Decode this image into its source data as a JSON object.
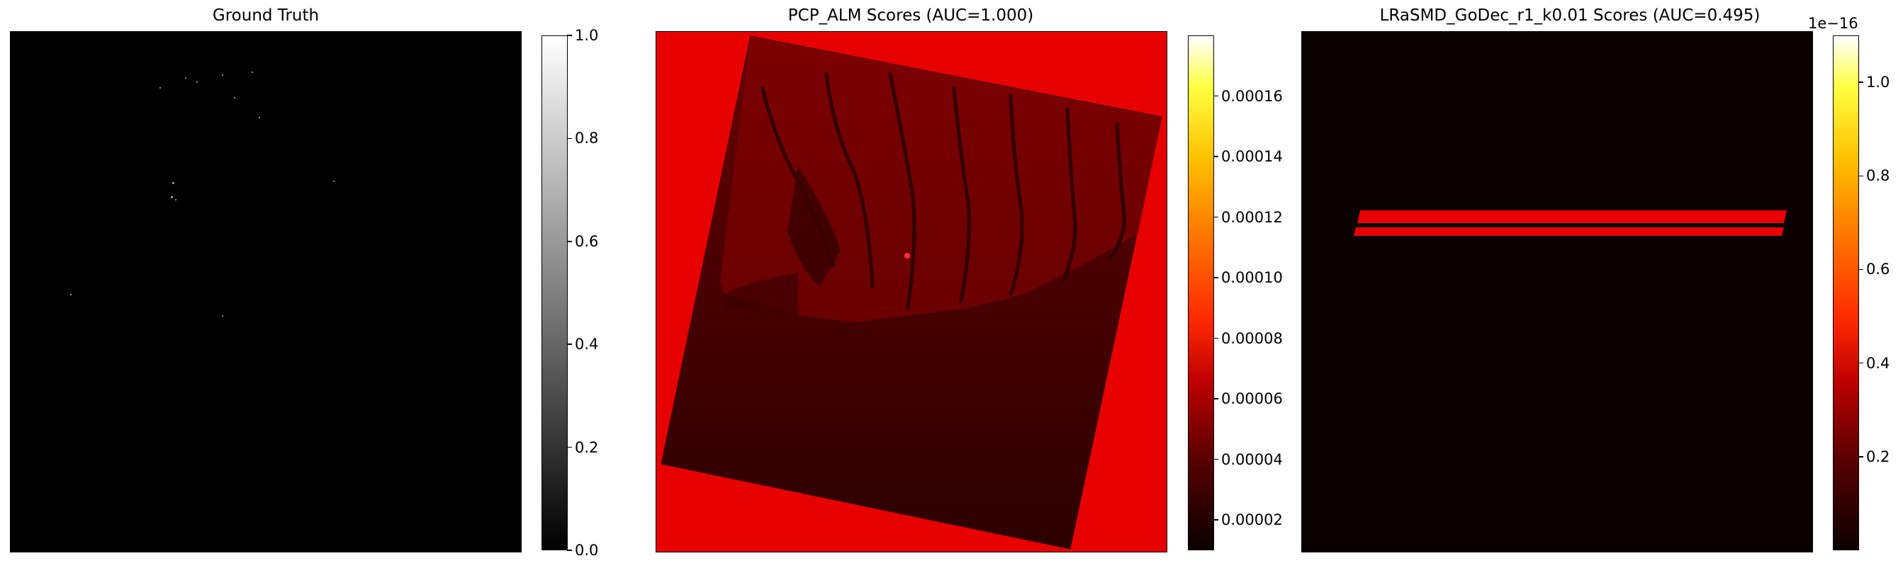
{
  "colors": {
    "gray_low": "#000000",
    "gray_high": "#ffffff",
    "hot_red": "#e60000",
    "hot_dark": "#0b0000"
  },
  "chart_data": [
    {
      "type": "heatmap",
      "title": "Ground Truth",
      "colormap": "gray",
      "colorbar": {
        "range": [
          0.0,
          1.0
        ],
        "ticks": [
          "0.0",
          "0.2",
          "0.4",
          "0.6",
          "0.8",
          "1.0"
        ]
      }
    },
    {
      "type": "heatmap",
      "title": "PCP_ALM Scores (AUC=1.000)",
      "colormap": "hot",
      "colorbar": {
        "range": [
          1e-05,
          0.00018
        ],
        "ticks": [
          "0.00002",
          "0.00004",
          "0.00006",
          "0.00008",
          "0.00010",
          "0.00012",
          "0.00014",
          "0.00016"
        ]
      }
    },
    {
      "type": "heatmap",
      "title": "LRaSMD_GoDec_r1_k0.01 Scores (AUC=0.495)",
      "colormap": "hot",
      "colorbar": {
        "range": [
          0.0,
          1.1
        ],
        "offset_label": "1e−16",
        "ticks": [
          "0.2",
          "0.4",
          "0.6",
          "0.8",
          "1.0"
        ]
      }
    }
  ]
}
